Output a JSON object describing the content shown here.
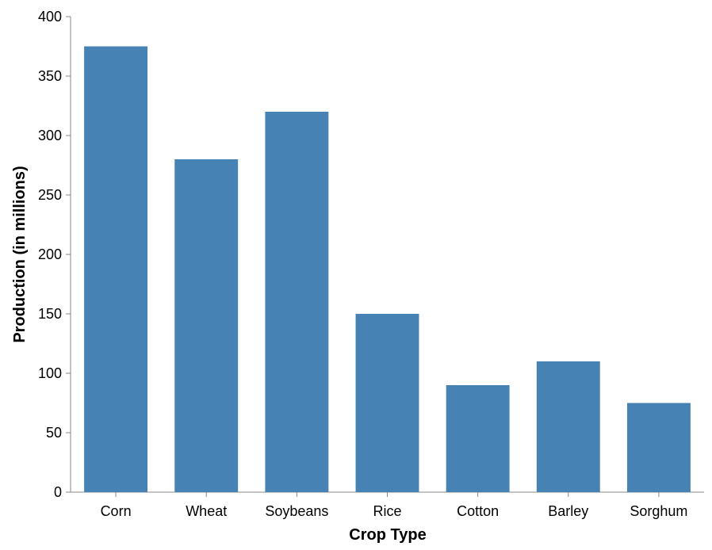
{
  "chart_data": {
    "type": "bar",
    "categories": [
      "Corn",
      "Wheat",
      "Soybeans",
      "Rice",
      "Cotton",
      "Barley",
      "Sorghum"
    ],
    "values": [
      375,
      280,
      320,
      150,
      90,
      110,
      75
    ],
    "xlabel": "Crop Type",
    "ylabel": "Production (in millions)",
    "ylim": [
      0,
      400
    ],
    "yticks": [
      0,
      50,
      100,
      150,
      200,
      250,
      300,
      350,
      400
    ],
    "grid": false,
    "bar_color": "#4682b4",
    "axis_color": "#888888"
  }
}
